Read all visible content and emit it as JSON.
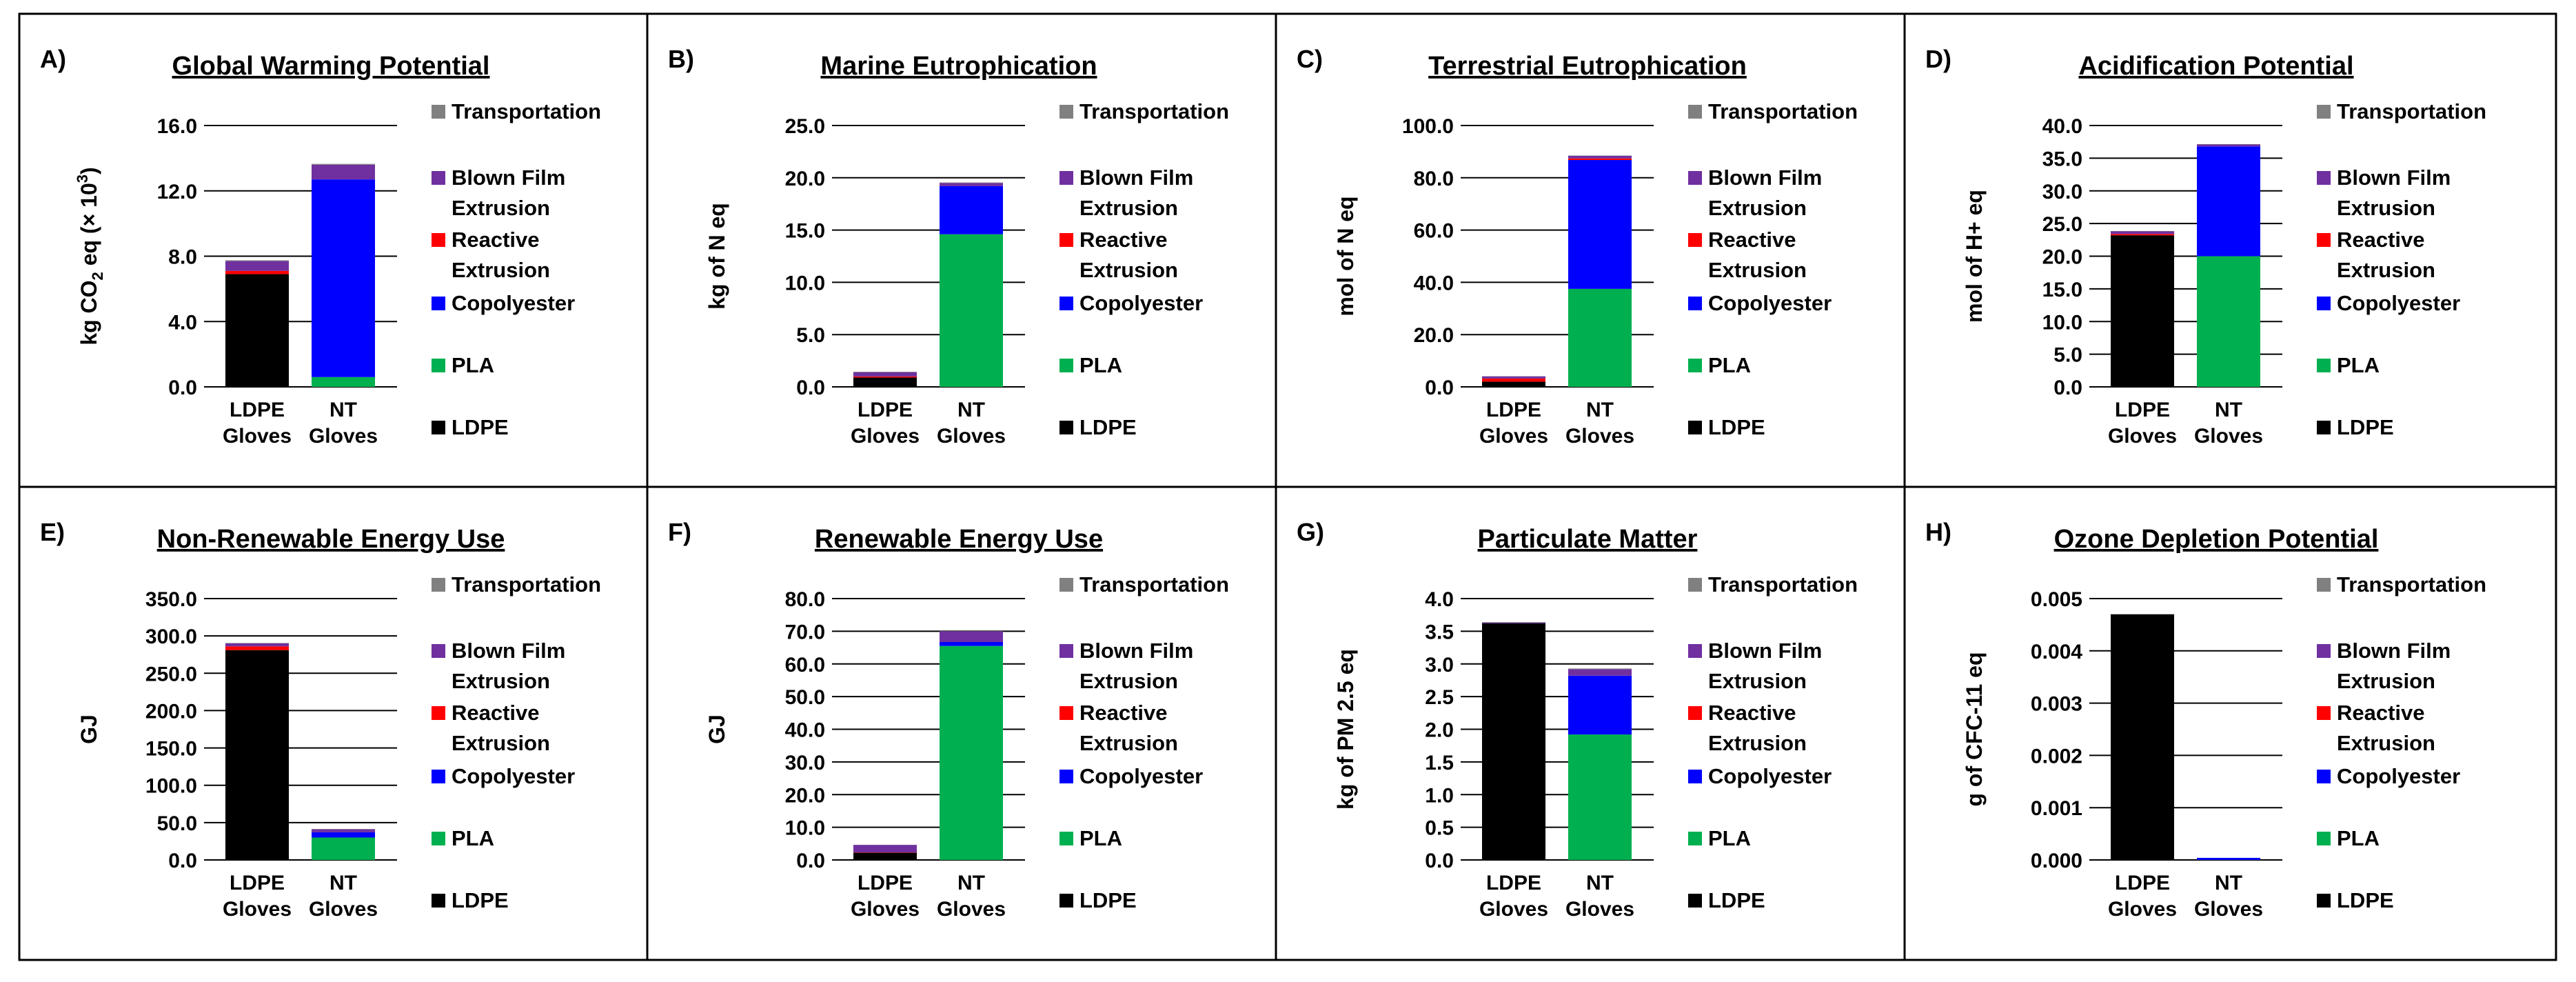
{
  "colors": {
    "Transportation": "#808080",
    "Blown Film Extrusion": "#7030a0",
    "Reactive Extrusion": "#ff0000",
    "Copolyester": "#0000ff",
    "PLA": "#00b050",
    "LDPE": "#000000"
  },
  "chart_data": [
    {
      "type": "bar",
      "stacked": true,
      "letter": "A)",
      "title": "Global Warming Potential",
      "ylabel": "kg CO2 eq (× 10³)",
      "ylabel_parts": {
        "base": "kg CO",
        "sub": "2",
        "mid": " eq (× 10",
        "sup": "3",
        "end": ")"
      },
      "ylim": [
        0,
        16
      ],
      "ticks": [
        "0.0",
        "4.0",
        "8.0",
        "12.0",
        "16.0"
      ],
      "categories": [
        [
          "LDPE",
          "Gloves"
        ],
        [
          "NT",
          "Gloves"
        ]
      ],
      "legend": [
        [
          "Transportation"
        ],
        [
          "Blown Film",
          "Extrusion"
        ],
        [
          "Reactive",
          "Extrusion"
        ],
        [
          "Copolyester"
        ],
        [
          "PLA"
        ],
        [
          "LDPE"
        ]
      ],
      "series": [
        {
          "name": "LDPE",
          "values": [
            6.9,
            0
          ]
        },
        {
          "name": "PLA",
          "values": [
            0,
            0.6
          ]
        },
        {
          "name": "Copolyester",
          "values": [
            0,
            12.1
          ]
        },
        {
          "name": "Reactive Extrusion",
          "values": [
            0.2,
            0
          ]
        },
        {
          "name": "Blown Film Extrusion",
          "values": [
            0.6,
            0.9
          ]
        },
        {
          "name": "Transportation",
          "values": [
            0.05,
            0.05
          ]
        }
      ]
    },
    {
      "type": "bar",
      "stacked": true,
      "letter": "B)",
      "title": "Marine Eutrophication",
      "ylabel": "kg of N eq",
      "ylim": [
        0,
        25
      ],
      "ticks": [
        "0.0",
        "5.0",
        "10.0",
        "15.0",
        "20.0",
        "25.0"
      ],
      "categories": [
        [
          "LDPE",
          "Gloves"
        ],
        [
          "NT",
          "Gloves"
        ]
      ],
      "legend": [
        [
          "Transportation"
        ],
        [
          "Blown Film",
          "Extrusion"
        ],
        [
          "Reactive",
          "Extrusion"
        ],
        [
          "Copolyester"
        ],
        [
          "PLA"
        ],
        [
          "LDPE"
        ]
      ],
      "series": [
        {
          "name": "LDPE",
          "values": [
            0.9,
            0
          ]
        },
        {
          "name": "PLA",
          "values": [
            0,
            14.6
          ]
        },
        {
          "name": "Copolyester",
          "values": [
            0,
            4.6
          ]
        },
        {
          "name": "Reactive Extrusion",
          "values": [
            0.1,
            0
          ]
        },
        {
          "name": "Blown Film Extrusion",
          "values": [
            0.4,
            0.3
          ]
        },
        {
          "name": "Transportation",
          "values": [
            0.05,
            0.05
          ]
        }
      ]
    },
    {
      "type": "bar",
      "stacked": true,
      "letter": "C)",
      "title": "Terrestrial  Eutrophication",
      "ylabel": "mol of N eq",
      "ylim": [
        0,
        100
      ],
      "ticks": [
        "0.0",
        "20.0",
        "40.0",
        "60.0",
        "80.0",
        "100.0"
      ],
      "categories": [
        [
          "LDPE",
          "Gloves"
        ],
        [
          "NT",
          "Gloves"
        ]
      ],
      "legend": [
        [
          "Transportation"
        ],
        [
          "Blown Film",
          "Extrusion"
        ],
        [
          "Reactive",
          "Extrusion"
        ],
        [
          "Copolyester"
        ],
        [
          "PLA"
        ],
        [
          "LDPE"
        ]
      ],
      "series": [
        {
          "name": "LDPE",
          "values": [
            2.0,
            0
          ]
        },
        {
          "name": "PLA",
          "values": [
            0,
            37.5
          ]
        },
        {
          "name": "Copolyester",
          "values": [
            0,
            49.3
          ]
        },
        {
          "name": "Reactive Extrusion",
          "values": [
            1.2,
            0.6
          ]
        },
        {
          "name": "Blown Film Extrusion",
          "values": [
            0.8,
            1.0
          ]
        },
        {
          "name": "Transportation",
          "values": [
            0.1,
            0.1
          ]
        }
      ]
    },
    {
      "type": "bar",
      "stacked": true,
      "letter": "D)",
      "title": "Acidification Potential",
      "ylabel": "mol of H+ eq",
      "ylim": [
        0,
        40
      ],
      "ticks": [
        "0.0",
        "5.0",
        "10.0",
        "15.0",
        "20.0",
        "25.0",
        "30.0",
        "35.0",
        "40.0"
      ],
      "categories": [
        [
          "LDPE",
          "Gloves"
        ],
        [
          "NT",
          "Gloves"
        ]
      ],
      "legend": [
        [
          "Transportation"
        ],
        [
          "Blown Film",
          "Extrusion"
        ],
        [
          "Reactive",
          "Extrusion"
        ],
        [
          "Copolyester"
        ],
        [
          "PLA"
        ],
        [
          "LDPE"
        ]
      ],
      "series": [
        {
          "name": "LDPE",
          "values": [
            23.2,
            0
          ]
        },
        {
          "name": "PLA",
          "values": [
            0,
            20.0
          ]
        },
        {
          "name": "Copolyester",
          "values": [
            0,
            16.8
          ]
        },
        {
          "name": "Reactive Extrusion",
          "values": [
            0.2,
            0
          ]
        },
        {
          "name": "Blown Film Extrusion",
          "values": [
            0.4,
            0.3
          ]
        },
        {
          "name": "Transportation",
          "values": [
            0.05,
            0.05
          ]
        }
      ]
    },
    {
      "type": "bar",
      "stacked": true,
      "letter": "E)",
      "title": "Non-Renewable Energy Use",
      "ylabel": "GJ",
      "ylim": [
        0,
        350
      ],
      "ticks": [
        "0.0",
        "50.0",
        "100.0",
        "150.0",
        "200.0",
        "250.0",
        "300.0",
        "350.0"
      ],
      "categories": [
        [
          "LDPE",
          "Gloves"
        ],
        [
          "NT",
          "Gloves"
        ]
      ],
      "legend": [
        [
          "Transportation"
        ],
        [
          "Blown Film",
          "Extrusion"
        ],
        [
          "Reactive",
          "Extrusion"
        ],
        [
          "Copolyester"
        ],
        [
          "PLA"
        ],
        [
          "LDPE"
        ]
      ],
      "series": [
        {
          "name": "LDPE",
          "values": [
            281,
            0
          ]
        },
        {
          "name": "PLA",
          "values": [
            0,
            30
          ]
        },
        {
          "name": "Copolyester",
          "values": [
            0,
            7
          ]
        },
        {
          "name": "Reactive Extrusion",
          "values": [
            5,
            0
          ]
        },
        {
          "name": "Blown Film Extrusion",
          "values": [
            4,
            4
          ]
        },
        {
          "name": "Transportation",
          "values": [
            0.5,
            0.5
          ]
        }
      ]
    },
    {
      "type": "bar",
      "stacked": true,
      "letter": "F)",
      "title": "Renewable Energy Use",
      "ylabel": "GJ",
      "ylim": [
        0,
        80
      ],
      "ticks": [
        "0.0",
        "10.0",
        "20.0",
        "30.0",
        "40.0",
        "50.0",
        "60.0",
        "70.0",
        "80.0"
      ],
      "categories": [
        [
          "LDPE",
          "Gloves"
        ],
        [
          "NT",
          "Gloves"
        ]
      ],
      "legend": [
        [
          "Transportation"
        ],
        [
          "Blown Film",
          "Extrusion"
        ],
        [
          "Reactive",
          "Extrusion"
        ],
        [
          "Copolyester"
        ],
        [
          "PLA"
        ],
        [
          "LDPE"
        ]
      ],
      "series": [
        {
          "name": "LDPE",
          "values": [
            2.2,
            0
          ]
        },
        {
          "name": "PLA",
          "values": [
            0,
            65.5
          ]
        },
        {
          "name": "Copolyester",
          "values": [
            0,
            1.2
          ]
        },
        {
          "name": "Reactive Extrusion",
          "values": [
            0.1,
            0
          ]
        },
        {
          "name": "Blown Film Extrusion",
          "values": [
            2.3,
            3.3
          ]
        },
        {
          "name": "Transportation",
          "values": [
            0.05,
            0.05
          ]
        }
      ]
    },
    {
      "type": "bar",
      "stacked": true,
      "letter": "G)",
      "title": "Particulate Matter",
      "ylabel": "kg of PM 2.5 eq",
      "ylim": [
        0,
        4
      ],
      "ticks": [
        "0.0",
        "0.5",
        "1.0",
        "1.5",
        "2.0",
        "2.5",
        "3.0",
        "3.5",
        "4.0"
      ],
      "categories": [
        [
          "LDPE",
          "Gloves"
        ],
        [
          "NT",
          "Gloves"
        ]
      ],
      "legend": [
        [
          "Transportation"
        ],
        [
          "Blown Film",
          "Extrusion"
        ],
        [
          "Reactive",
          "Extrusion"
        ],
        [
          "Copolyester"
        ],
        [
          "PLA"
        ],
        [
          "LDPE"
        ]
      ],
      "series": [
        {
          "name": "LDPE",
          "values": [
            3.62,
            0
          ]
        },
        {
          "name": "PLA",
          "values": [
            0,
            1.92
          ]
        },
        {
          "name": "Copolyester",
          "values": [
            0,
            0.9
          ]
        },
        {
          "name": "Reactive Extrusion",
          "values": [
            0,
            0
          ]
        },
        {
          "name": "Blown Film Extrusion",
          "values": [
            0.01,
            0.1
          ]
        },
        {
          "name": "Transportation",
          "values": [
            0.01,
            0.01
          ]
        }
      ]
    },
    {
      "type": "bar",
      "stacked": true,
      "letter": "H)",
      "title": "Ozone Depletion Potential",
      "ylabel": "g of CFC-11 eq",
      "ylim": [
        0,
        0.005
      ],
      "ticks": [
        "0.000",
        "0.001",
        "0.002",
        "0.003",
        "0.004",
        "0.005"
      ],
      "categories": [
        [
          "LDPE",
          "Gloves"
        ],
        [
          "NT",
          "Gloves"
        ]
      ],
      "legend": [
        [
          "Transportation"
        ],
        [
          "Blown Film",
          "Extrusion"
        ],
        [
          "Reactive",
          "Extrusion"
        ],
        [
          "Copolyester"
        ],
        [
          "PLA"
        ],
        [
          "LDPE"
        ]
      ],
      "series": [
        {
          "name": "LDPE",
          "values": [
            0.0047,
            0
          ]
        },
        {
          "name": "PLA",
          "values": [
            0,
            0
          ]
        },
        {
          "name": "Copolyester",
          "values": [
            0,
            4e-05
          ]
        },
        {
          "name": "Reactive Extrusion",
          "values": [
            0,
            0
          ]
        },
        {
          "name": "Blown Film Extrusion",
          "values": [
            0,
            0
          ]
        },
        {
          "name": "Transportation",
          "values": [
            0,
            0
          ]
        }
      ]
    }
  ]
}
